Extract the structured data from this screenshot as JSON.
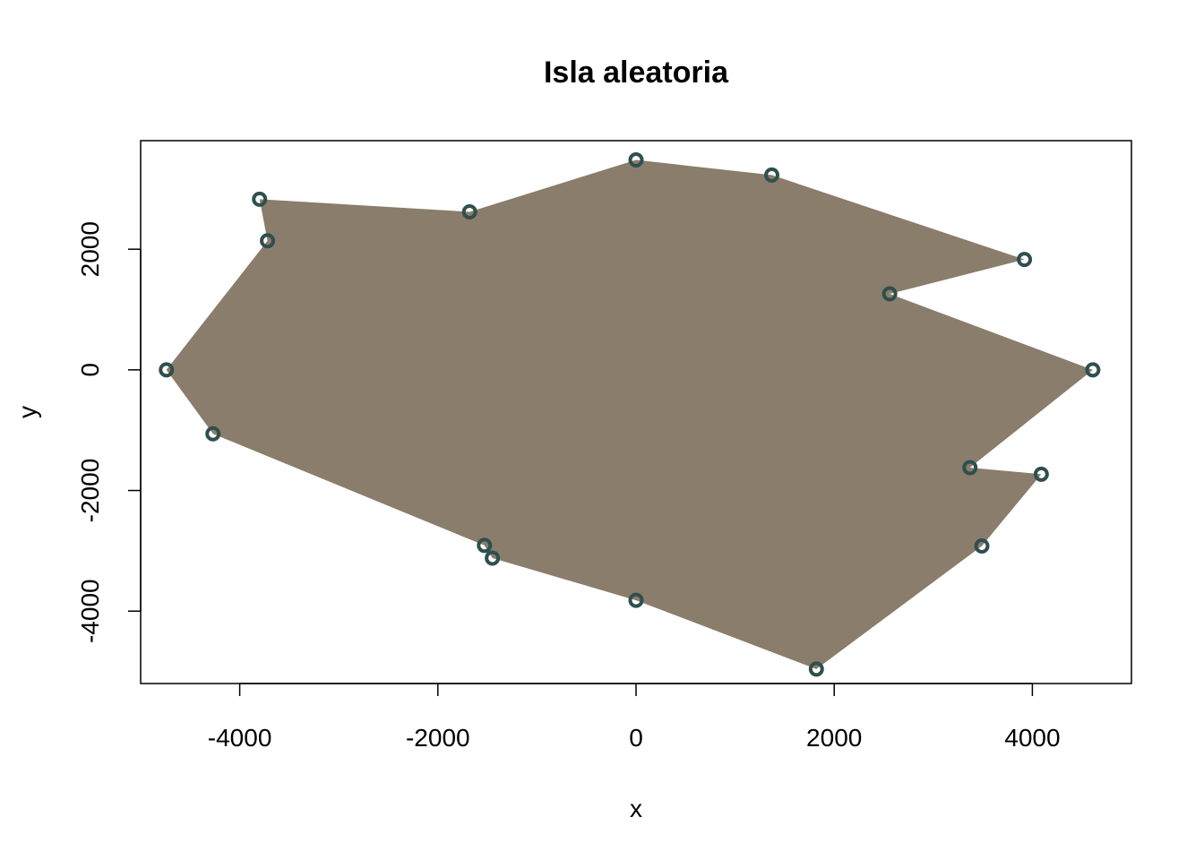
{
  "chart_data": {
    "type": "scatter",
    "title": "Isla aleatoria",
    "xlabel": "x",
    "ylabel": "y",
    "xlim": [
      -5000,
      5000
    ],
    "ylim": [
      -5200,
      3800
    ],
    "x_ticks": [
      -4000,
      -2000,
      0,
      2000,
      4000
    ],
    "y_ticks": [
      -4000,
      -2000,
      0,
      2000
    ],
    "x_tick_labels": [
      "-4000",
      "-2000",
      "0",
      "2000",
      "4000"
    ],
    "y_tick_labels": [
      "-4000",
      "-2000",
      "0",
      "2000"
    ],
    "grid": false,
    "polygon_fill": "#8b7d6b",
    "point_color": "#2f4f4f",
    "points": [
      {
        "x": 0,
        "y": 3480
      },
      {
        "x": 1370,
        "y": 3230
      },
      {
        "x": 3920,
        "y": 1830
      },
      {
        "x": 2560,
        "y": 1260
      },
      {
        "x": 4610,
        "y": 0
      },
      {
        "x": 3370,
        "y": -1620
      },
      {
        "x": 4090,
        "y": -1730
      },
      {
        "x": 3490,
        "y": -2920
      },
      {
        "x": 1820,
        "y": -4960
      },
      {
        "x": 0,
        "y": -3820
      },
      {
        "x": -1450,
        "y": -3120
      },
      {
        "x": -1530,
        "y": -2910
      },
      {
        "x": -4270,
        "y": -1060
      },
      {
        "x": -4740,
        "y": 0
      },
      {
        "x": -3720,
        "y": 2140
      },
      {
        "x": -3800,
        "y": 2830
      },
      {
        "x": -1680,
        "y": 2620
      }
    ]
  }
}
